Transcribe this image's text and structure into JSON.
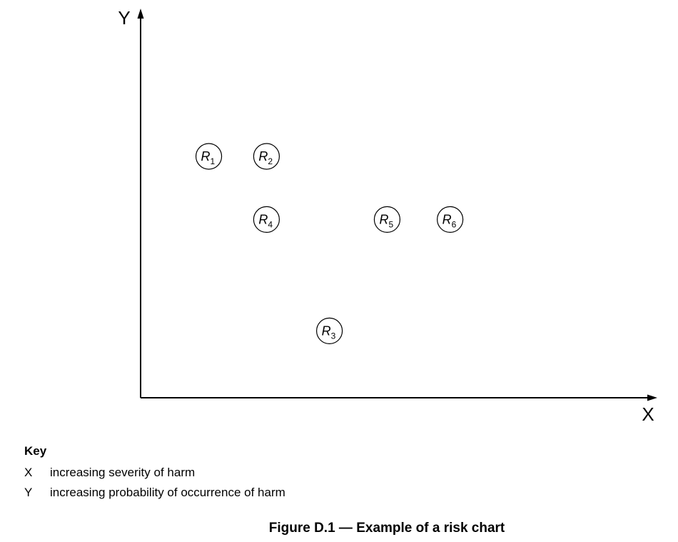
{
  "chart_data": {
    "type": "scatter",
    "title": "Figure D.1 — Example of a risk chart",
    "xlabel": "X",
    "ylabel": "Y",
    "xlim": [
      0,
      10
    ],
    "ylim": [
      0,
      10
    ],
    "grid": false,
    "points": [
      {
        "label": "R",
        "sub": "1",
        "x": 1.3,
        "y": 6.5
      },
      {
        "label": "R",
        "sub": "2",
        "x": 2.4,
        "y": 6.5
      },
      {
        "label": "R",
        "sub": "3",
        "x": 3.6,
        "y": 1.8
      },
      {
        "label": "R",
        "sub": "4",
        "x": 2.4,
        "y": 4.8
      },
      {
        "label": "R",
        "sub": "5",
        "x": 4.7,
        "y": 4.8
      },
      {
        "label": "R",
        "sub": "6",
        "x": 5.9,
        "y": 4.8
      }
    ]
  },
  "key": {
    "title": "Key",
    "entries": [
      {
        "symbol": "X",
        "text": "increasing severity of harm"
      },
      {
        "symbol": "Y",
        "text": "increasing probability of occurrence of harm"
      }
    ]
  },
  "caption": "Figure D.1 — Example of a risk chart"
}
